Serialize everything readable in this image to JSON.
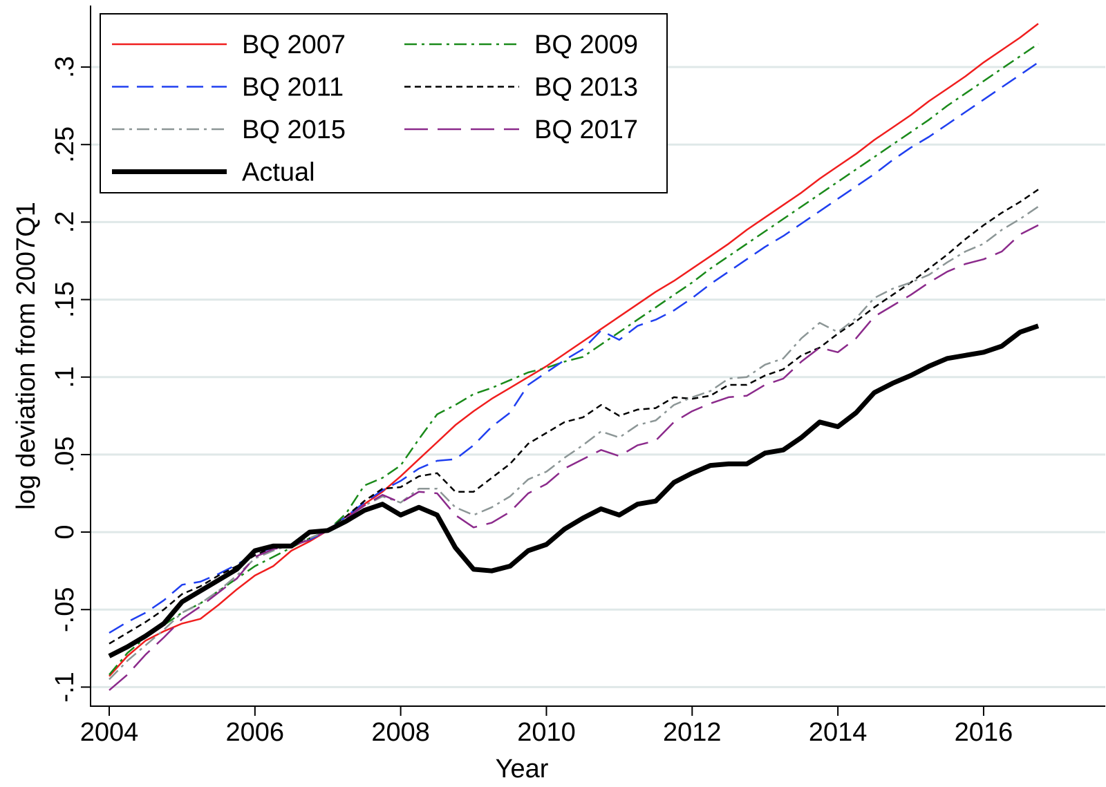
{
  "chart_data": {
    "type": "line",
    "xlabel": "Year",
    "ylabel": "log deviation from 2007Q1",
    "x": [
      2004,
      2004.25,
      2004.5,
      2004.75,
      2005,
      2005.25,
      2005.5,
      2005.75,
      2006,
      2006.25,
      2006.5,
      2006.75,
      2007,
      2007.25,
      2007.5,
      2007.75,
      2008,
      2008.25,
      2008.5,
      2008.75,
      2009,
      2009.25,
      2009.5,
      2009.75,
      2010,
      2010.25,
      2010.5,
      2010.75,
      2011,
      2011.25,
      2011.5,
      2011.75,
      2012,
      2012.25,
      2012.5,
      2012.75,
      2013,
      2013.25,
      2013.5,
      2013.75,
      2014,
      2014.25,
      2014.5,
      2014.75,
      2015,
      2015.25,
      2015.5,
      2015.75,
      2016,
      2016.25,
      2016.5,
      2016.75
    ],
    "series": [
      {
        "name": "BQ 2007",
        "color": "#f01e1e",
        "dash": "solid",
        "line_width": 2.5,
        "values": [
          -0.093,
          -0.08,
          -0.07,
          -0.064,
          -0.059,
          -0.056,
          -0.047,
          -0.037,
          -0.028,
          -0.022,
          -0.012,
          -0.006,
          0.001,
          0.01,
          0.018,
          0.026,
          0.036,
          0.047,
          0.058,
          0.069,
          0.078,
          0.086,
          0.093,
          0.1,
          0.107,
          0.115,
          0.123,
          0.131,
          0.139,
          0.147,
          0.155,
          0.162,
          0.17,
          0.178,
          0.186,
          0.195,
          0.203,
          0.211,
          0.219,
          0.228,
          0.236,
          0.244,
          0.253,
          0.261,
          0.269,
          0.278,
          0.286,
          0.294,
          0.303,
          0.311,
          0.319,
          0.328
        ]
      },
      {
        "name": "BQ 2009",
        "color": "#1a8a1a",
        "dash": "dash-dot",
        "line_width": 2.5,
        "values": [
          -0.092,
          -0.078,
          -0.068,
          -0.06,
          -0.052,
          -0.046,
          -0.038,
          -0.03,
          -0.022,
          -0.016,
          -0.01,
          -0.004,
          0.001,
          0.012,
          0.03,
          0.035,
          0.043,
          0.06,
          0.076,
          0.082,
          0.089,
          0.093,
          0.098,
          0.103,
          0.106,
          0.11,
          0.113,
          0.121,
          0.129,
          0.137,
          0.145,
          0.153,
          0.161,
          0.17,
          0.178,
          0.186,
          0.194,
          0.202,
          0.21,
          0.218,
          0.226,
          0.234,
          0.242,
          0.25,
          0.258,
          0.266,
          0.275,
          0.283,
          0.291,
          0.299,
          0.307,
          0.315
        ]
      },
      {
        "name": "BQ 2011",
        "color": "#1f3ff0",
        "dash": "dashed",
        "line_width": 2.5,
        "values": [
          -0.065,
          -0.058,
          -0.052,
          -0.044,
          -0.034,
          -0.032,
          -0.027,
          -0.021,
          -0.014,
          -0.01,
          -0.008,
          -0.005,
          0.001,
          0.01,
          0.019,
          0.027,
          0.033,
          0.041,
          0.046,
          0.047,
          0.056,
          0.068,
          0.077,
          0.095,
          0.103,
          0.111,
          0.118,
          0.13,
          0.124,
          0.133,
          0.137,
          0.143,
          0.151,
          0.16,
          0.168,
          0.176,
          0.184,
          0.191,
          0.199,
          0.207,
          0.215,
          0.223,
          0.231,
          0.24,
          0.248,
          0.255,
          0.263,
          0.271,
          0.279,
          0.287,
          0.295,
          0.303
        ]
      },
      {
        "name": "BQ 2013",
        "color": "#000000",
        "dash": "short-dash",
        "line_width": 2.5,
        "values": [
          -0.072,
          -0.065,
          -0.058,
          -0.05,
          -0.04,
          -0.035,
          -0.028,
          -0.022,
          -0.015,
          -0.01,
          -0.008,
          -0.004,
          0.001,
          0.01,
          0.02,
          0.028,
          0.029,
          0.036,
          0.038,
          0.026,
          0.026,
          0.035,
          0.044,
          0.057,
          0.064,
          0.071,
          0.074,
          0.082,
          0.075,
          0.079,
          0.08,
          0.087,
          0.086,
          0.088,
          0.095,
          0.095,
          0.101,
          0.105,
          0.114,
          0.119,
          0.128,
          0.136,
          0.145,
          0.153,
          0.161,
          0.17,
          0.179,
          0.189,
          0.198,
          0.206,
          0.213,
          0.221
        ]
      },
      {
        "name": "BQ 2015",
        "color": "#8c9696",
        "dash": "dash-dot",
        "line_width": 2.5,
        "values": [
          -0.095,
          -0.083,
          -0.073,
          -0.063,
          -0.052,
          -0.046,
          -0.038,
          -0.028,
          -0.017,
          -0.012,
          -0.008,
          -0.004,
          0.001,
          0.009,
          0.017,
          0.023,
          0.019,
          0.028,
          0.028,
          0.016,
          0.011,
          0.016,
          0.023,
          0.034,
          0.039,
          0.048,
          0.056,
          0.065,
          0.061,
          0.069,
          0.072,
          0.082,
          0.087,
          0.091,
          0.099,
          0.1,
          0.108,
          0.112,
          0.125,
          0.135,
          0.129,
          0.138,
          0.151,
          0.157,
          0.161,
          0.166,
          0.174,
          0.181,
          0.186,
          0.195,
          0.202,
          0.21
        ]
      },
      {
        "name": "BQ 2017",
        "color": "#8b2a8b",
        "dash": "long-dash",
        "line_width": 2.5,
        "values": [
          -0.102,
          -0.092,
          -0.079,
          -0.068,
          -0.056,
          -0.048,
          -0.039,
          -0.03,
          -0.016,
          -0.011,
          -0.009,
          -0.005,
          0.001,
          0.009,
          0.017,
          0.024,
          0.019,
          0.026,
          0.025,
          0.011,
          0.003,
          0.006,
          0.013,
          0.025,
          0.031,
          0.041,
          0.047,
          0.053,
          0.049,
          0.056,
          0.059,
          0.071,
          0.078,
          0.083,
          0.087,
          0.088,
          0.095,
          0.099,
          0.11,
          0.119,
          0.116,
          0.125,
          0.139,
          0.146,
          0.153,
          0.161,
          0.168,
          0.173,
          0.176,
          0.181,
          0.192,
          0.198
        ]
      },
      {
        "name": "Actual",
        "color": "#000000",
        "dash": "solid",
        "line_width": 7,
        "values": [
          -0.08,
          -0.074,
          -0.067,
          -0.059,
          -0.045,
          -0.038,
          -0.031,
          -0.024,
          -0.012,
          -0.009,
          -0.009,
          0.0,
          0.001,
          0.007,
          0.014,
          0.018,
          0.011,
          0.016,
          0.011,
          -0.01,
          -0.024,
          -0.025,
          -0.022,
          -0.012,
          -0.008,
          0.002,
          0.009,
          0.015,
          0.011,
          0.018,
          0.02,
          0.032,
          0.038,
          0.043,
          0.044,
          0.044,
          0.051,
          0.053,
          0.061,
          0.071,
          0.068,
          0.077,
          0.09,
          0.096,
          0.101,
          0.107,
          0.112,
          0.114,
          0.116,
          0.12,
          0.129,
          0.133
        ]
      }
    ],
    "xlim": [
      2003.744,
      2017.67
    ],
    "ylim": [
      -0.1123,
      0.3397
    ],
    "xticks": [
      2004,
      2006,
      2008,
      2010,
      2012,
      2014,
      2016
    ],
    "yticks": [
      {
        "value": -0.1,
        "label": "-.1"
      },
      {
        "value": -0.05,
        "label": "-.05"
      },
      0,
      {
        "value": 0.05,
        "label": ".05"
      },
      {
        "value": 0.1,
        "label": ".1"
      },
      {
        "value": 0.15,
        "label": ".15"
      },
      {
        "value": 0.2,
        "label": ".2"
      },
      {
        "value": 0.25,
        "label": ".25"
      },
      {
        "value": 0.3,
        "label": ".3"
      }
    ],
    "grid": true,
    "legend": "top-left"
  }
}
